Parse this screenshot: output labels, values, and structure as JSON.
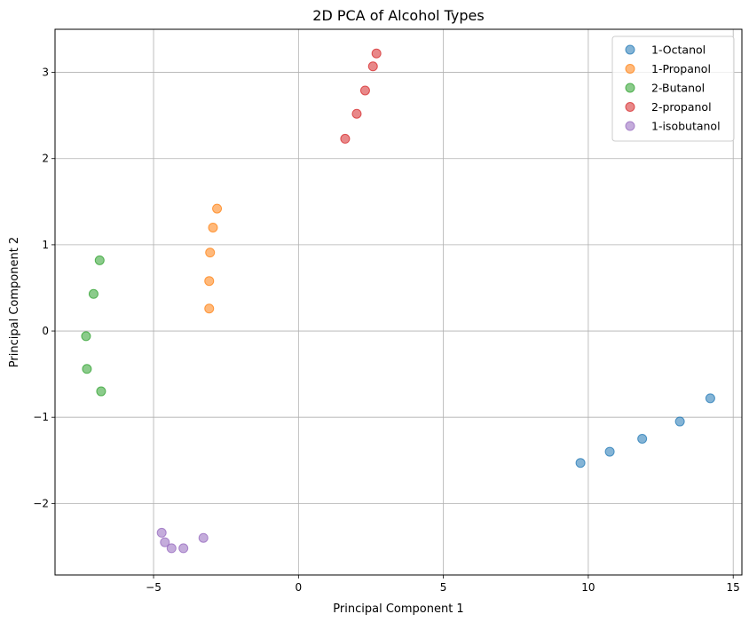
{
  "chart_data": {
    "type": "scatter",
    "title": "2D PCA of Alcohol Types",
    "xlabel": "Principal Component 1",
    "ylabel": "Principal Component 2",
    "xlim": [
      -8.4,
      15.3
    ],
    "ylim": [
      -2.83,
      3.5
    ],
    "xticks": [
      -5,
      0,
      5,
      10,
      15
    ],
    "xtick_labels": [
      "−5",
      "0",
      "5",
      "10",
      "15"
    ],
    "yticks": [
      -2,
      -1,
      0,
      1,
      2,
      3
    ],
    "ytick_labels": [
      "−2",
      "−1",
      "0",
      "1",
      "2",
      "3"
    ],
    "grid": true,
    "legend_position": "top-right",
    "series": [
      {
        "name": "1-Octanol",
        "color": "#1f77b4",
        "points": [
          [
            9.73,
            -1.53
          ],
          [
            10.74,
            -1.4
          ],
          [
            11.86,
            -1.25
          ],
          [
            13.16,
            -1.05
          ],
          [
            14.21,
            -0.78
          ]
        ]
      },
      {
        "name": "1-Propanol",
        "color": "#ff7f0e",
        "points": [
          [
            -3.08,
            0.26
          ],
          [
            -3.08,
            0.58
          ],
          [
            -3.05,
            0.91
          ],
          [
            -2.95,
            1.2
          ],
          [
            -2.81,
            1.42
          ]
        ]
      },
      {
        "name": "2-Butanol",
        "color": "#2ca02c",
        "points": [
          [
            -7.33,
            -0.06
          ],
          [
            -7.3,
            -0.44
          ],
          [
            -7.07,
            0.43
          ],
          [
            -6.86,
            0.82
          ],
          [
            -6.81,
            -0.7
          ]
        ]
      },
      {
        "name": "2-propanol",
        "color": "#d62728",
        "points": [
          [
            1.61,
            2.23
          ],
          [
            2.01,
            2.52
          ],
          [
            2.3,
            2.79
          ],
          [
            2.57,
            3.07
          ],
          [
            2.69,
            3.22
          ]
        ]
      },
      {
        "name": "1-isobutanol",
        "color": "#9467bd",
        "points": [
          [
            -4.72,
            -2.34
          ],
          [
            -4.61,
            -2.45
          ],
          [
            -4.38,
            -2.52
          ],
          [
            -3.97,
            -2.52
          ],
          [
            -3.28,
            -2.4
          ]
        ]
      }
    ]
  }
}
